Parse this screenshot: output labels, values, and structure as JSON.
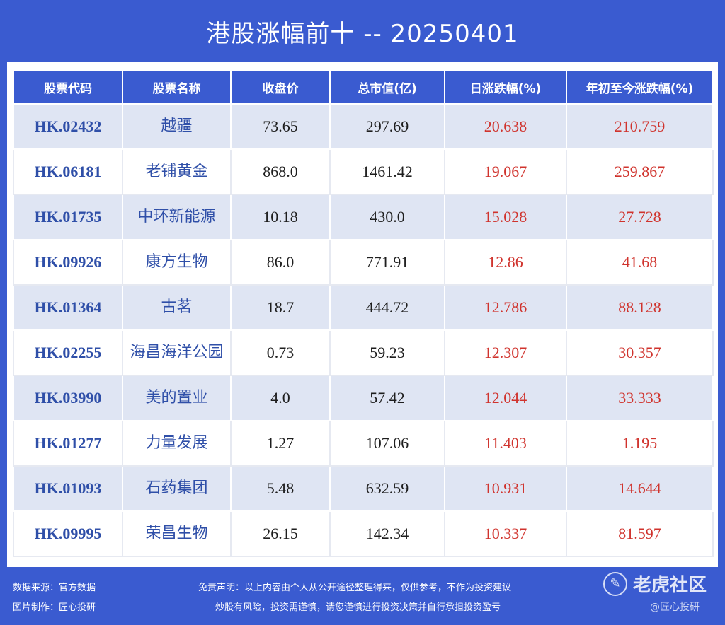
{
  "title": "港股涨幅前十 -- 20250401",
  "table": {
    "headers": [
      "股票代码",
      "股票名称",
      "收盘价",
      "总市值(亿)",
      "日涨跌幅(%)",
      "年初至今涨跌幅(%)"
    ],
    "rows": [
      [
        "HK.02432",
        "越疆",
        "73.65",
        "297.69",
        "20.638",
        "210.759"
      ],
      [
        "HK.06181",
        "老铺黄金",
        "868.0",
        "1461.42",
        "19.067",
        "259.867"
      ],
      [
        "HK.01735",
        "中环新能源",
        "10.18",
        "430.0",
        "15.028",
        "27.728"
      ],
      [
        "HK.09926",
        "康方生物",
        "86.0",
        "771.91",
        "12.86",
        "41.68"
      ],
      [
        "HK.01364",
        "古茗",
        "18.7",
        "444.72",
        "12.786",
        "88.128"
      ],
      [
        "HK.02255",
        "海昌海洋公园",
        "0.73",
        "59.23",
        "12.307",
        "30.357"
      ],
      [
        "HK.03990",
        "美的置业",
        "4.0",
        "57.42",
        "12.044",
        "33.333"
      ],
      [
        "HK.01277",
        "力量发展",
        "1.27",
        "107.06",
        "11.403",
        "1.195"
      ],
      [
        "HK.01093",
        "石药集团",
        "5.48",
        "632.59",
        "10.931",
        "14.644"
      ],
      [
        "HK.09995",
        "荣昌生物",
        "26.15",
        "142.34",
        "10.337",
        "81.597"
      ]
    ]
  },
  "footer": {
    "source": "数据来源：官方数据",
    "made_by": "图片制作：匠心投研",
    "disclaimer_1": "免责声明：以上内容由个人从公开途径整理得来，仅供参考，不作为投资建议",
    "disclaimer_2": "炒股有风险，投资需谨慎，请您谨慎进行投资决策并自行承担投资盈亏",
    "brand": "老虎社区",
    "brand_icon": "tiger-logo-icon",
    "watermark": "@匠心投研"
  },
  "colors": {
    "background": "#3a5bd0",
    "header_bg": "#3a5bd0",
    "row_alt_bg": "#dfe5f3",
    "code_text": "#2f4fa8",
    "positive_change": "#d0332d"
  }
}
